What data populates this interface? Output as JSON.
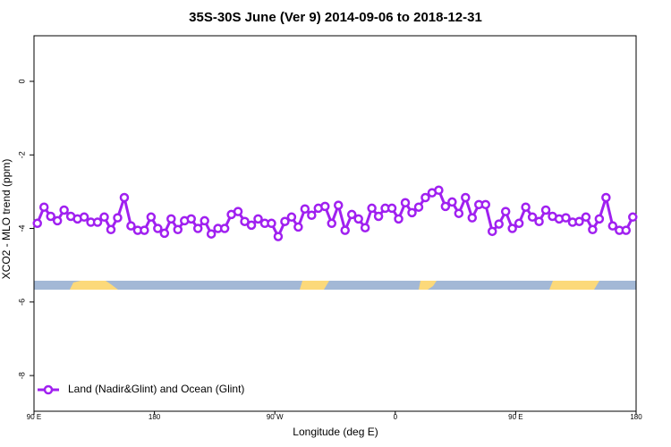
{
  "chart_data": {
    "type": "line",
    "title": "35S-30S June (Ver 9)   2014-09-06 to 2018-12-31",
    "xlabel": "Longitude (deg E)",
    "ylabel": "XCO2 - MLO trend (ppm)",
    "x": [
      92.5,
      97.5,
      102.5,
      107.5,
      112.5,
      117.5,
      122.5,
      127.5,
      132.5,
      137.5,
      142.5,
      147.5,
      152.5,
      157.5,
      162.5,
      167.5,
      172.5,
      177.5,
      182.5,
      187.5,
      192.5,
      197.5,
      202.5,
      207.5,
      212.5,
      217.5,
      222.5,
      227.5,
      232.5,
      237.5,
      242.5,
      247.5,
      252.5,
      257.5,
      262.5,
      267.5,
      272.5,
      277.5,
      282.5,
      287.5,
      292.5,
      297.5,
      302.5,
      307.5,
      312.5,
      317.5,
      322.5,
      327.5,
      332.5,
      337.5,
      342.5,
      347.5,
      352.5,
      357.5,
      362.5,
      367.5,
      372.5,
      377.5,
      382.5,
      387.5,
      392.5,
      397.5,
      402.5,
      407.5,
      412.5,
      417.5,
      422.5,
      427.5,
      432.5,
      437.5,
      442.5,
      447.5,
      452.5,
      457.5,
      462.5,
      467.5,
      472.5,
      477.5,
      482.5,
      487.5,
      492.5,
      497.5,
      502.5,
      507.5,
      512.5,
      517.5,
      522.5,
      527.5,
      532.5,
      537.5
    ],
    "series": [
      {
        "name": "Land (Nadir&Glint) and Ocean (Glint)",
        "color": "#a020f0",
        "values": [
          -3.86,
          -3.42,
          -3.67,
          -3.79,
          -3.5,
          -3.67,
          -3.74,
          -3.69,
          -3.83,
          -3.83,
          -3.69,
          -4.03,
          -3.71,
          -3.16,
          -3.93,
          -4.05,
          -4.05,
          -3.69,
          -4.0,
          -4.13,
          -3.74,
          -4.03,
          -3.79,
          -3.74,
          -4.0,
          -3.79,
          -4.15,
          -4.0,
          -4.0,
          -3.62,
          -3.54,
          -3.81,
          -3.91,
          -3.74,
          -3.86,
          -3.86,
          -4.22,
          -3.81,
          -3.69,
          -3.96,
          -3.47,
          -3.64,
          -3.45,
          -3.4,
          -3.86,
          -3.37,
          -4.05,
          -3.62,
          -3.74,
          -3.98,
          -3.45,
          -3.67,
          -3.45,
          -3.45,
          -3.74,
          -3.3,
          -3.57,
          -3.42,
          -3.16,
          -3.03,
          -2.96,
          -3.4,
          -3.28,
          -3.59,
          -3.16,
          -3.71,
          -3.35,
          -3.35,
          -4.08,
          -3.88,
          -3.54,
          -4.0,
          -3.86,
          -3.42,
          -3.69,
          -3.81,
          -3.5,
          -3.67,
          -3.74,
          -3.71,
          -3.83,
          -3.81,
          -3.69,
          -4.03,
          -3.74,
          -3.16,
          -3.93,
          -4.05,
          -4.05,
          -3.69
        ]
      }
    ],
    "xlim": [
      90,
      540
    ],
    "ylim": [
      -8.97,
      1.24
    ],
    "xticks": [
      {
        "value": 90,
        "label": "90 E"
      },
      180,
      {
        "value": 270,
        "label": "90 W"
      },
      {
        "value": 360,
        "label": "0"
      },
      {
        "value": 450,
        "label": "90 E"
      },
      {
        "value": 540,
        "label": "180"
      }
    ],
    "yticks": [
      -8,
      -6,
      -4,
      -2,
      0
    ],
    "legend": "bottom-left"
  }
}
